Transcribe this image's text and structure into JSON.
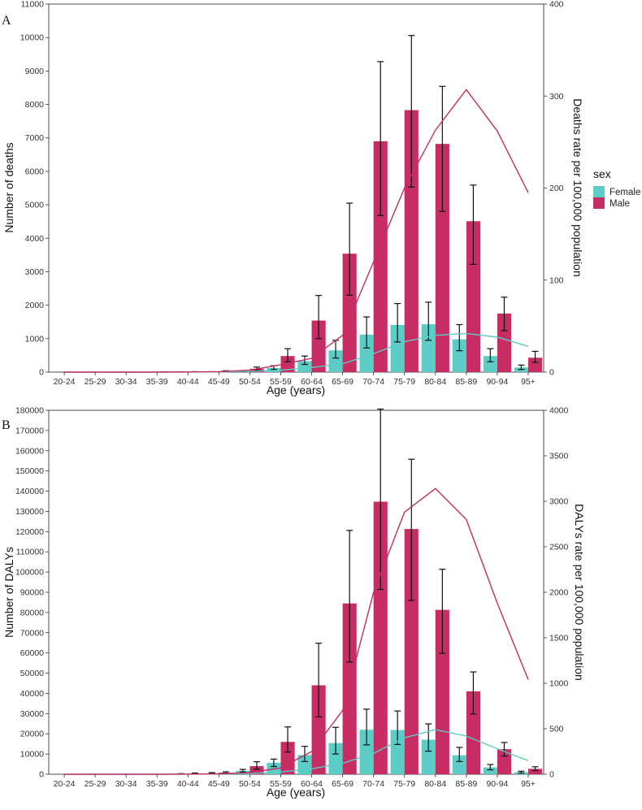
{
  "legend": {
    "title": "sex",
    "entries": [
      {
        "name": "Female",
        "color": "#5cccc6"
      },
      {
        "name": "Male",
        "color": "#c72c62"
      }
    ]
  },
  "chart_data": [
    {
      "panel": "A",
      "type": "bar",
      "xlabel": "Age (years)",
      "ylabel": "Number of deaths",
      "y2label": "Deaths rate per 100,000 population",
      "categories": [
        "20-24",
        "25-29",
        "30-34",
        "35-39",
        "40-44",
        "45-49",
        "50-54",
        "55-59",
        "60-64",
        "65-69",
        "70-74",
        "75-79",
        "80-84",
        "85-89",
        "90-94",
        "95+"
      ],
      "ylim": [
        0,
        11000
      ],
      "y2lim": [
        0,
        400
      ],
      "yticks": [
        0,
        1000,
        2000,
        3000,
        4000,
        5000,
        6000,
        7000,
        8000,
        9000,
        10000,
        11000
      ],
      "y2ticks": [
        0,
        100,
        200,
        300,
        400
      ],
      "series": [
        {
          "name": "Female",
          "color": "#5cccc6",
          "values": [
            0,
            0,
            0,
            0,
            3,
            7,
            22,
            120,
            330,
            650,
            1120,
            1410,
            1430,
            980,
            480,
            140
          ],
          "lower": [
            0,
            0,
            0,
            0,
            2,
            5,
            15,
            80,
            230,
            420,
            720,
            900,
            950,
            640,
            310,
            80
          ],
          "upper": [
            0,
            0,
            0,
            0,
            5,
            12,
            35,
            190,
            480,
            950,
            1650,
            2050,
            2090,
            1420,
            700,
            210
          ]
        },
        {
          "name": "Male",
          "color": "#c72c62",
          "values": [
            0,
            0,
            0,
            2,
            8,
            25,
            100,
            480,
            1540,
            3540,
            6900,
            7830,
            6820,
            4510,
            1750,
            430
          ],
          "lower": [
            0,
            0,
            0,
            1,
            5,
            15,
            65,
            310,
            1000,
            2300,
            4680,
            5530,
            4800,
            3220,
            1240,
            290
          ],
          "upper": [
            0,
            0,
            0,
            4,
            14,
            40,
            150,
            700,
            2290,
            5050,
            9280,
            10060,
            8540,
            5590,
            2240,
            620
          ]
        }
      ],
      "rate_lines": [
        {
          "name": "Female",
          "color": "#5cccc6",
          "values": [
            0,
            0,
            0,
            0,
            0.1,
            0.3,
            1,
            2,
            5,
            9,
            20,
            33,
            40,
            42,
            38,
            28
          ]
        },
        {
          "name": "Male",
          "color": "#c72c62",
          "values": [
            0,
            0,
            0,
            0,
            0.2,
            0.5,
            2,
            8,
            15,
            40,
            120,
            200,
            263,
            307,
            262,
            195
          ]
        }
      ]
    },
    {
      "panel": "B",
      "type": "bar",
      "xlabel": "Age (years)",
      "ylabel": "Number of DALYs",
      "y2label": "DALYs rate per 100,000 population",
      "categories": [
        "20-24",
        "25-29",
        "30-34",
        "35-39",
        "40-44",
        "45-49",
        "50-54",
        "55-59",
        "60-64",
        "65-69",
        "70-74",
        "75-79",
        "80-84",
        "85-89",
        "90-94",
        "95+"
      ],
      "ylim": [
        0,
        180000
      ],
      "y2lim": [
        0,
        4000
      ],
      "yticks": [
        0,
        10000,
        20000,
        30000,
        40000,
        50000,
        60000,
        70000,
        80000,
        90000,
        100000,
        110000,
        120000,
        130000,
        140000,
        150000,
        160000,
        170000,
        180000
      ],
      "y2ticks": [
        0,
        500,
        1000,
        1500,
        2000,
        2500,
        3000,
        3500,
        4000
      ],
      "series": [
        {
          "name": "Female",
          "color": "#5cccc6",
          "values": [
            0,
            0,
            0,
            0,
            200,
            500,
            1700,
            5700,
            9500,
            15400,
            22000,
            21900,
            17100,
            9400,
            3400,
            1000
          ],
          "lower": [
            0,
            0,
            0,
            0,
            120,
            300,
            1100,
            3800,
            6300,
            10000,
            14500,
            14700,
            11400,
            6300,
            2200,
            600
          ],
          "upper": [
            0,
            0,
            0,
            0,
            300,
            800,
            2400,
            7500,
            13800,
            23200,
            32200,
            31300,
            24900,
            13300,
            4800,
            1500
          ]
        },
        {
          "name": "Male",
          "color": "#c72c62",
          "values": [
            0,
            0,
            0,
            0,
            400,
            800,
            4000,
            16000,
            44000,
            84500,
            134800,
            121300,
            81300,
            41000,
            12400,
            2700
          ],
          "lower": [
            0,
            0,
            0,
            0,
            250,
            500,
            2500,
            11000,
            28400,
            55500,
            91400,
            86000,
            59800,
            29800,
            9000,
            1800
          ],
          "upper": [
            0,
            0,
            0,
            0,
            600,
            1200,
            6200,
            23400,
            64800,
            120600,
            180600,
            155800,
            101400,
            50600,
            15700,
            3700
          ]
        }
      ],
      "rate_lines": [
        {
          "name": "Female",
          "color": "#5cccc6",
          "values": [
            0,
            0,
            0,
            0,
            1,
            3,
            8,
            25,
            60,
            120,
            230,
            400,
            490,
            420,
            280,
            150
          ]
        },
        {
          "name": "Male",
          "color": "#c72c62",
          "values": [
            0,
            0,
            0,
            0,
            2,
            5,
            18,
            70,
            250,
            700,
            2000,
            2880,
            3140,
            2800,
            1880,
            1040
          ]
        }
      ]
    }
  ]
}
